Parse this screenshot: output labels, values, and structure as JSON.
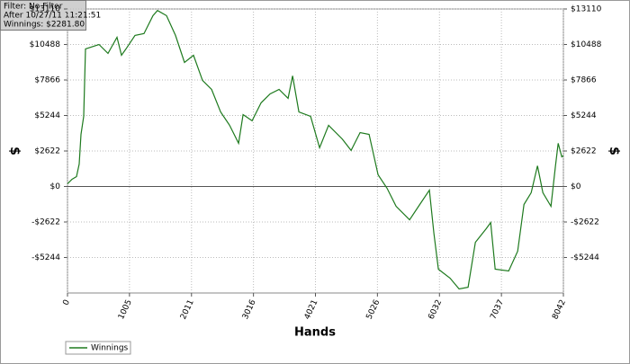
{
  "chart_data": {
    "type": "line",
    "annotations": [
      "Filter: No Filter",
      "After 10/27/11 11:21:51",
      "Winnings: $2281.80"
    ],
    "x_label": "Hands",
    "y_label": "$",
    "x": [
      0,
      73,
      146,
      190,
      219,
      263,
      292,
      511,
      657,
      803,
      876,
      949,
      1095,
      1241,
      1387,
      1460,
      1606,
      1752,
      1898,
      2044,
      2190,
      2336,
      2482,
      2628,
      2774,
      2847,
      2993,
      3139,
      3285,
      3431,
      3577,
      3650,
      3752,
      3942,
      4088,
      4234,
      4453,
      4599,
      4745,
      4891,
      5037,
      5183,
      5329,
      5548,
      5694,
      5869,
      5942,
      6015,
      6205,
      6351,
      6497,
      6614,
      6789,
      6862,
      6935,
      7154,
      7300,
      7402,
      7519,
      7621,
      7709,
      7840,
      7913,
      7957,
      8015,
      8042
    ],
    "series": [
      {
        "name": "Winnings",
        "color": "#1e7a1e",
        "values": [
          200,
          530,
          730,
          1660,
          3850,
          5180,
          10160,
          10490,
          9830,
          11020,
          9690,
          10160,
          11160,
          11290,
          12620,
          13000,
          12620,
          11160,
          9160,
          9690,
          7840,
          7170,
          5510,
          4520,
          3190,
          5310,
          4850,
          6180,
          6840,
          7170,
          6510,
          8170,
          5510,
          5180,
          2860,
          4520,
          3520,
          2660,
          3980,
          3850,
          860,
          -130,
          -1460,
          -2460,
          -1460,
          -270,
          -3450,
          -6110,
          -6770,
          -7570,
          -7440,
          -4120,
          -3120,
          -2660,
          -6110,
          -6240,
          -4780,
          -1330,
          -460,
          1530,
          -460,
          -1460,
          1530,
          3190,
          2190,
          2282
        ]
      }
    ],
    "xlim": [
      0,
      8042
    ],
    "xticks": [
      0,
      1005,
      2011,
      3016,
      4021,
      5026,
      6032,
      7037,
      8042
    ],
    "ylim": [
      -7866,
      13110
    ],
    "yticks": [
      {
        "value": -5244,
        "label": "-$5244"
      },
      {
        "value": -2622,
        "label": "-$2622"
      },
      {
        "value": 0,
        "label": "$0"
      },
      {
        "value": 2622,
        "label": "$2622"
      },
      {
        "value": 5244,
        "label": "$5244"
      },
      {
        "value": 7866,
        "label": "$7866"
      },
      {
        "value": 10488,
        "label": "$10488"
      },
      {
        "value": 13110,
        "label": "$13110"
      }
    ],
    "grid": true
  }
}
